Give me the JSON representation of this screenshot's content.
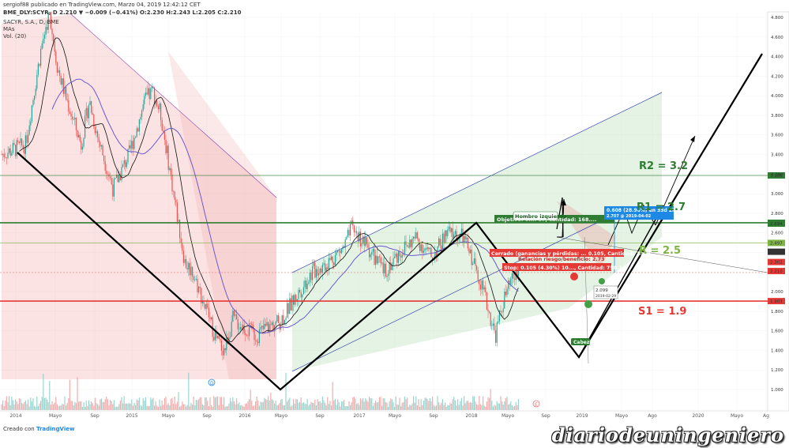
{
  "header": {
    "publisher": "sergiof88 publicado en TradingView.com, Marzo 04, 2019 12:42:12 CET",
    "symbol_line": "BME_DLY:SCYR, D  2.210  ▼ −0.009 (−0.41%)  O:2.230  H:2.243  L:2.205  C:2.210",
    "legend_1": "SACYR, S.A., D, BME",
    "legend_2": "MAs",
    "legend_3": "Vol. (20)"
  },
  "footer": {
    "created": "Creado con",
    "brand": "TradingView"
  },
  "watermark": "diariodeuningeniero",
  "colors": {
    "up": "#26a69a",
    "down": "#ef5350",
    "ma_fast": "#111111",
    "ma_slow": "#6a5acd",
    "support": "#e53935",
    "resistance": "#2e7d32",
    "resistance2": "#7cb342",
    "channel": "#3949ab"
  },
  "chart_data": {
    "type": "candlestick",
    "y_ticks": [
      "4.800",
      "4.600",
      "4.400",
      "4.200",
      "4.000",
      "3.800",
      "3.600",
      "3.400",
      "3.200",
      "3.000",
      "2.800",
      "2.600",
      "2.400",
      "2.200",
      "2.000",
      "1.800",
      "1.600",
      "1.400",
      "1.200",
      "1.000"
    ],
    "ylim": [
      0.9,
      4.85
    ],
    "x_ticks": [
      "2014",
      "Mayo",
      "Sep",
      "2015",
      "Mayo",
      "Sep",
      "2016",
      "Mayo",
      "Sep",
      "2017",
      "Mayo",
      "Sep",
      "2018",
      "Mayo",
      "Sep",
      "2019",
      "Mayo",
      "Ago",
      "2020",
      "Mayo",
      "Ag"
    ],
    "price_path": [
      [
        "2013-10",
        3.4
      ],
      [
        "2014-01",
        3.5
      ],
      [
        "2014-03",
        4.5
      ],
      [
        "2014-04",
        4.85
      ],
      [
        "2014-05",
        4.3
      ],
      [
        "2014-06",
        4.0
      ],
      [
        "2014-08",
        3.5
      ],
      [
        "2014-09",
        3.95
      ],
      [
        "2014-10",
        3.6
      ],
      [
        "2014-12",
        3.05
      ],
      [
        "2015-02",
        3.4
      ],
      [
        "2015-04",
        3.95
      ],
      [
        "2015-05",
        4.05
      ],
      [
        "2015-06",
        3.8
      ],
      [
        "2015-07",
        3.3
      ],
      [
        "2015-08",
        2.8
      ],
      [
        "2015-09",
        2.3
      ],
      [
        "2015-10",
        2.2
      ],
      [
        "2015-12",
        1.75
      ],
      [
        "2016-01",
        1.5
      ],
      [
        "2016-02",
        1.4
      ],
      [
        "2016-03",
        1.72
      ],
      [
        "2016-05",
        1.6
      ],
      [
        "2016-06",
        1.55
      ],
      [
        "2016-07",
        1.62
      ],
      [
        "2016-09",
        1.7
      ],
      [
        "2016-11",
        1.95
      ],
      [
        "2017-01",
        2.2
      ],
      [
        "2017-03",
        2.3
      ],
      [
        "2017-05",
        2.45
      ],
      [
        "2017-06",
        2.65
      ],
      [
        "2017-08",
        2.45
      ],
      [
        "2017-10",
        2.2
      ],
      [
        "2017-12",
        2.4
      ],
      [
        "2018-02",
        2.55
      ],
      [
        "2018-04",
        2.35
      ],
      [
        "2018-06",
        2.6
      ],
      [
        "2018-08",
        2.55
      ],
      [
        "2018-10",
        2.15
      ],
      [
        "2018-11",
        1.85
      ],
      [
        "2018-12",
        1.55
      ],
      [
        "2019-01",
        1.9
      ],
      [
        "2019-02",
        2.1
      ],
      [
        "2019-03",
        2.21
      ]
    ],
    "levels": [
      {
        "label": "R2 = 3.2",
        "price": 3.186,
        "tag": "3.186",
        "color": "#2e7d32"
      },
      {
        "label": "R1 = 2.7",
        "price": 2.703,
        "tag": "2.703",
        "color": "#2e7d32"
      },
      {
        "label": "R = 2.5",
        "price": 2.497,
        "tag": "2.497",
        "color": "#7cb342"
      },
      {
        "label": "S1 = 1.9",
        "price": 1.903,
        "tag": "1.903",
        "color": "#e53935"
      }
    ],
    "price_tags": [
      "2.694",
      "2.407",
      "2.302",
      "2.210"
    ],
    "annotations": {
      "hombro": "Hombro izquierdo",
      "cabeza": "Cabeza",
      "objetivo": "Objetivo: 0.... 87, cantidad: 168....",
      "cerrado": "Cerrado (ganancias y pérdidas: ... 0.105, Cantidad: 2380",
      "ratio": "Relación riesgo/beneficio: 2.73",
      "stop": "Stop: 0.105 (4.30%) 10..., Cantidad: 750.1",
      "measure_1": "0.608 (28.96%) en 33d 2h",
      "measure_2": "2.707 @ 2019-04-02",
      "point_1": "2.099",
      "point_2": "2019-02-29"
    }
  }
}
